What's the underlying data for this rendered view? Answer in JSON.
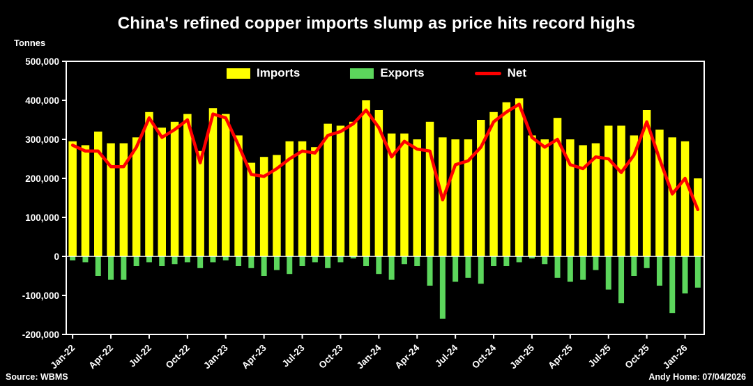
{
  "title": "China's refined copper imports slump as price hits record highs",
  "y_axis_unit": "Tonnes",
  "footer": {
    "source": "Source: WBMS",
    "credit": "Andy Home: 07/04/2026"
  },
  "colors": {
    "background": "#000000",
    "axis": "#FFFFFF",
    "imports": "#FFFF00",
    "exports": "#5CD65C",
    "net": "#FF0000"
  },
  "chart_data": {
    "type": "bar",
    "subtype": "bar+line combo",
    "grid": false,
    "legend_position": "top-center-inside",
    "ylim": [
      -200000,
      500000
    ],
    "ytick_step": 100000,
    "xtick_every": 3,
    "categories": [
      "Jan-22",
      "Feb-22",
      "Mar-22",
      "Apr-22",
      "May-22",
      "Jun-22",
      "Jul-22",
      "Aug-22",
      "Sep-22",
      "Oct-22",
      "Nov-22",
      "Dec-22",
      "Jan-23",
      "Feb-23",
      "Mar-23",
      "Apr-23",
      "May-23",
      "Jun-23",
      "Jul-23",
      "Aug-23",
      "Sep-23",
      "Oct-23",
      "Nov-23",
      "Dec-23",
      "Jan-24",
      "Feb-24",
      "Mar-24",
      "Apr-24",
      "May-24",
      "Jun-24",
      "Jul-24",
      "Aug-24",
      "Sep-24",
      "Oct-24",
      "Nov-24",
      "Dec-24",
      "Jan-25",
      "Feb-25",
      "Mar-25",
      "Apr-25",
      "May-25",
      "Jun-25",
      "Jul-25",
      "Aug-25",
      "Sep-25",
      "Oct-25",
      "Nov-25",
      "Dec-25",
      "Jan-26",
      "Feb-26"
    ],
    "series": [
      {
        "name": "Imports",
        "type": "bar",
        "color": "#FFFF00",
        "values": [
          295000,
          285000,
          320000,
          290000,
          290000,
          305000,
          370000,
          330000,
          345000,
          365000,
          270000,
          380000,
          365000,
          310000,
          240000,
          255000,
          260000,
          295000,
          295000,
          280000,
          340000,
          335000,
          345000,
          400000,
          375000,
          315000,
          315000,
          300000,
          345000,
          305000,
          300000,
          300000,
          350000,
          370000,
          395000,
          405000,
          310000,
          300000,
          355000,
          300000,
          285000,
          290000,
          335000,
          335000,
          310000,
          375000,
          325000,
          305000,
          295000,
          200000
        ]
      },
      {
        "name": "Exports",
        "type": "bar",
        "color": "#5CD65C",
        "values": [
          -10000,
          -15000,
          -50000,
          -60000,
          -60000,
          -25000,
          -15000,
          -25000,
          -20000,
          -15000,
          -30000,
          -15000,
          -10000,
          -25000,
          -30000,
          -50000,
          -35000,
          -45000,
          -25000,
          -15000,
          -30000,
          -15000,
          -5000,
          -25000,
          -45000,
          -60000,
          -20000,
          -25000,
          -75000,
          -160000,
          -65000,
          -55000,
          -70000,
          -25000,
          -25000,
          -15000,
          -5000,
          -20000,
          -55000,
          -65000,
          -60000,
          -35000,
          -85000,
          -120000,
          -50000,
          -30000,
          -75000,
          -145000,
          -95000,
          -80000
        ]
      },
      {
        "name": "Net",
        "type": "line",
        "color": "#FF0000",
        "values": [
          285000,
          270000,
          270000,
          230000,
          230000,
          280000,
          355000,
          305000,
          325000,
          350000,
          240000,
          365000,
          355000,
          285000,
          210000,
          205000,
          225000,
          250000,
          270000,
          265000,
          310000,
          320000,
          340000,
          375000,
          330000,
          255000,
          295000,
          275000,
          270000,
          145000,
          235000,
          245000,
          280000,
          345000,
          370000,
          390000,
          305000,
          280000,
          300000,
          235000,
          225000,
          255000,
          250000,
          215000,
          260000,
          345000,
          250000,
          160000,
          200000,
          120000
        ]
      }
    ]
  }
}
